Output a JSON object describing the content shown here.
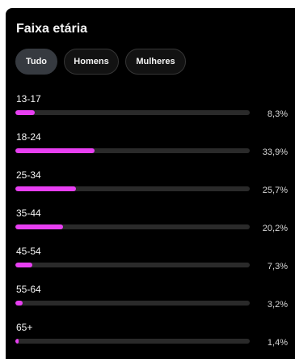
{
  "title": "Faixa etária",
  "filters": [
    {
      "label": "Tudo",
      "active": true
    },
    {
      "label": "Homens",
      "active": false
    },
    {
      "label": "Mulheres",
      "active": false
    }
  ],
  "bar_color": "#e83ff2",
  "track_color": "#2a2a2a",
  "age_groups": [
    {
      "label": "13-17",
      "percent_text": "8,3%",
      "value": 8.3
    },
    {
      "label": "18-24",
      "percent_text": "33,9%",
      "value": 33.9
    },
    {
      "label": "25-34",
      "percent_text": "25,7%",
      "value": 25.7
    },
    {
      "label": "35-44",
      "percent_text": "20,2%",
      "value": 20.2
    },
    {
      "label": "45-54",
      "percent_text": "7,3%",
      "value": 7.3
    },
    {
      "label": "55-64",
      "percent_text": "3,2%",
      "value": 3.2
    },
    {
      "label": "65+",
      "percent_text": "1,4%",
      "value": 1.4
    }
  ]
}
